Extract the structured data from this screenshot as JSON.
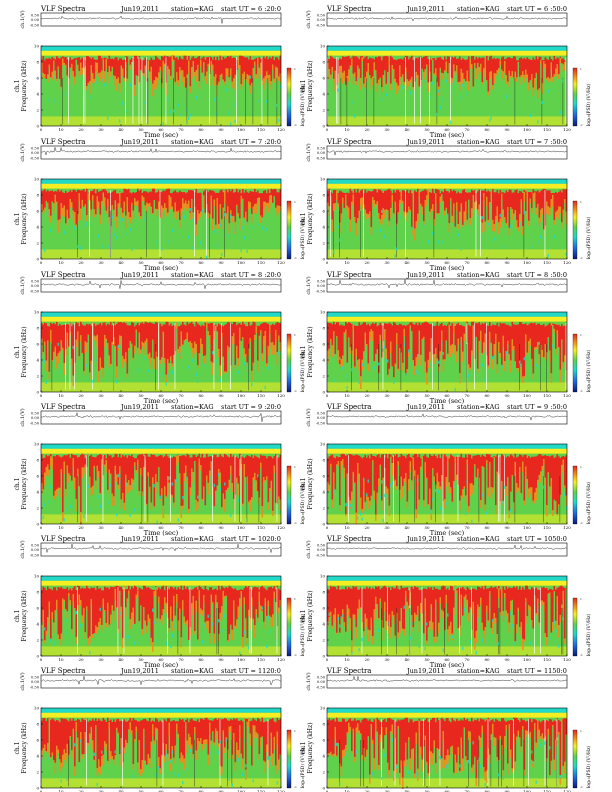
{
  "chart_data": {
    "type": "heatmap",
    "rows": 6,
    "columns": 2,
    "panels": [
      {
        "title": "VLF Spectra",
        "date": "Jun19,2011",
        "station": "station=KAG",
        "start": "start  UT = 6 :20:0",
        "xmax": 120
      },
      {
        "title": "VLF Spectra",
        "date": "Jun19,2011",
        "station": "station=KAG",
        "start": "start  UT = 6 :50:0",
        "xmax": 120
      },
      {
        "title": "VLF Spectra",
        "date": "Jun19,2011",
        "station": "station=KAG",
        "start": "start  UT = 7 :20:0",
        "xmax": 120
      },
      {
        "title": "VLF Spectra",
        "date": "Jun19,2011",
        "station": "station=KAG",
        "start": "start  UT = 7 :50:0",
        "xmax": 120
      },
      {
        "title": "VLF Spectra",
        "date": "Jun19,2011",
        "station": "station=KAG",
        "start": "start  UT = 8 :20:0",
        "xmax": 120
      },
      {
        "title": "VLF Spectra",
        "date": "Jun19,2011",
        "station": "station=KAG",
        "start": "start  UT = 8 :50:0",
        "xmax": 120
      },
      {
        "title": "VLF Spectra",
        "date": "Jun19,2011",
        "station": "station=KAG",
        "start": "start  UT = 9 :20:0",
        "xmax": 120
      },
      {
        "title": "VLF Spectra",
        "date": "Jun19,2011",
        "station": "station=KAG",
        "start": "start  UT = 9 :50:0",
        "xmax": 120
      },
      {
        "title": "VLF Spectra",
        "date": "Jun19,2011",
        "station": "station=KAG",
        "start": "start  UT = 1020:0",
        "xmax": 120
      },
      {
        "title": "VLF Spectra",
        "date": "Jun19,2011",
        "station": "station=KAG",
        "start": "start  UT = 1050:0",
        "xmax": 120
      },
      {
        "title": "VLF Spectra",
        "date": "Jun19,2011",
        "station": "station=KAG",
        "start": "start  UT = 1120:0",
        "xmax": 120
      },
      {
        "title": "VLF Spectra",
        "date": "Jun19,2011",
        "station": "station=KAG",
        "start": "start  UT = 1150:0",
        "xmax": 120
      }
    ],
    "waveform_axis": {
      "label": "ch.1(V)",
      "ticks": [
        "0.50",
        "0.00",
        "-0.50"
      ],
      "ylim": [
        -0.5,
        0.5
      ]
    },
    "spectrogram_axis": {
      "label_top": "ch.1",
      "label": "Frequency  (kHz)",
      "ylim": [
        0,
        10
      ],
      "ticks": [
        0,
        2,
        4,
        6,
        8,
        10
      ]
    },
    "x_axis": {
      "label": "Time  (sec)",
      "xlim": [
        0,
        120
      ],
      "ticks": [
        0,
        10,
        20,
        30,
        40,
        50,
        60,
        70,
        80,
        90,
        100,
        110,
        120
      ]
    },
    "colorbar": {
      "label": "log₁₀(PSD) (V²/Hz)",
      "range": [
        -1,
        1
      ]
    },
    "colors": {
      "red": "#e8281e",
      "orange": "#f48a1c",
      "yellow": "#f5ee23",
      "green": "#5fd14a",
      "cyan": "#22d9c7",
      "blue": "#1e64e6",
      "navy": "#0a1a7a"
    }
  }
}
